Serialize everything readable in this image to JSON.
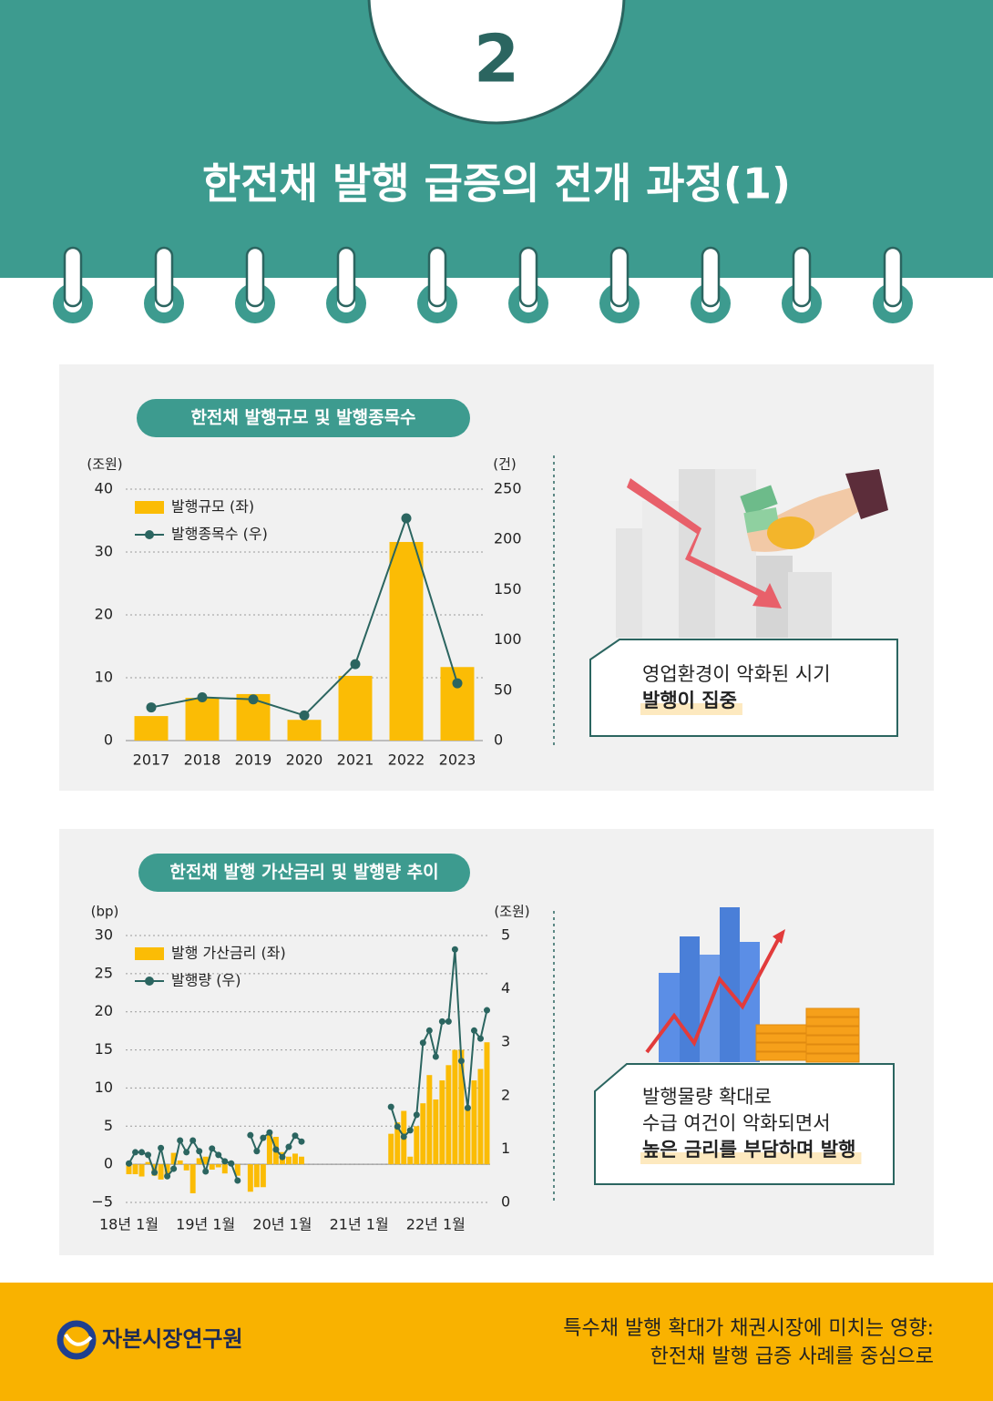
{
  "header": {
    "number": "2",
    "title": "한전채 발행 급증의 전개 과정(1)"
  },
  "chart_data": [
    {
      "type": "bar",
      "title": "한전채 발행규모 및 발행종목수",
      "y_label": "(조원)",
      "y2_label": "(건)",
      "categories": [
        "2017",
        "2018",
        "2019",
        "2020",
        "2021",
        "2022",
        "2023"
      ],
      "series": [
        {
          "name": "발행규모 (좌)",
          "color": "#fbbc05",
          "values": [
            3.9,
            6.8,
            7.4,
            3.3,
            10.3,
            31.6,
            11.7
          ]
        },
        {
          "name": "발행종목수 (우)",
          "type": "line",
          "axis": "y2",
          "color": "#2b6560",
          "values": [
            33,
            43,
            41,
            25,
            76,
            221,
            57
          ]
        }
      ],
      "ylim": [
        0,
        40
      ],
      "yticks": [
        0,
        10,
        20,
        30,
        40
      ],
      "y2lim": [
        0,
        250
      ],
      "y2ticks": [
        0,
        50,
        100,
        150,
        200,
        250
      ],
      "grid": true,
      "legend": "upper left"
    },
    {
      "type": "bar",
      "title": "한전채 발행 가산금리 및 발행량 추이",
      "y_label": "(bp)",
      "y2_label": "(조원)",
      "categories": [
        "18년 1월",
        null,
        null,
        null,
        null,
        null,
        null,
        null,
        null,
        null,
        null,
        null,
        "19년 1월",
        null,
        null,
        null,
        null,
        null,
        null,
        null,
        null,
        null,
        null,
        null,
        "20년 1월",
        null,
        null,
        null,
        null,
        null,
        null,
        null,
        null,
        null,
        null,
        null,
        "21년 1월",
        null,
        null,
        null,
        null,
        null,
        null,
        null,
        null,
        null,
        null,
        null,
        "22년 1월",
        null,
        null,
        null,
        null,
        null,
        null,
        null,
        null
      ],
      "series": [
        {
          "name": "발행 가산금리 (좌)",
          "color": "#fbbc05",
          "values": [
            -1.3,
            -1.3,
            -1.6,
            0.3,
            -1.5,
            -2.0,
            -1.6,
            1.5,
            0.5,
            -0.8,
            -3.8,
            0.8,
            1.0,
            -0.7,
            -0.4,
            -1.2,
            0.3,
            -1.5,
            null,
            -3.6,
            -3.0,
            -3.0,
            4.2,
            3.6,
            1.6,
            1.0,
            1.4,
            1.0,
            null,
            null,
            null,
            null,
            null,
            null,
            null,
            null,
            null,
            null,
            null,
            null,
            null,
            4.0,
            5.5,
            7.0,
            1.0,
            5.0,
            8.0,
            11.7,
            8.5,
            11.0,
            13.0,
            15.0,
            15.0,
            7.5,
            11.0,
            12.5,
            16.0
          ]
        },
        {
          "name": "발행량 (우)",
          "type": "line",
          "axis": "y2",
          "color": "#2b6560",
          "values": [
            0.73,
            0.94,
            0.94,
            0.89,
            0.56,
            1.02,
            0.49,
            0.63,
            1.16,
            0.94,
            1.16,
            0.96,
            0.58,
            1.01,
            0.89,
            0.77,
            0.73,
            0.41,
            null,
            1.26,
            0.96,
            1.21,
            1.31,
            0.99,
            0.85,
            1.04,
            1.25,
            1.14,
            null,
            null,
            null,
            null,
            null,
            null,
            null,
            null,
            null,
            null,
            null,
            null,
            null,
            1.79,
            1.42,
            1.23,
            1.35,
            1.64,
            2.99,
            3.22,
            2.73,
            3.39,
            3.39,
            4.74,
            2.65,
            1.77,
            3.22,
            3.07,
            3.6
          ]
        }
      ],
      "ylim": [
        -5,
        30
      ],
      "yticks": [
        {
          "value": -5,
          "label": "−5"
        },
        0,
        5,
        10,
        15,
        20,
        25,
        30
      ],
      "y2lim": [
        0,
        5
      ],
      "y2ticks": [
        0,
        1,
        2,
        3,
        4,
        5
      ],
      "grid": true,
      "legend": "upper left"
    }
  ],
  "callouts": [
    {
      "lines": [
        "영업환경이 악화된 시기"
      ],
      "highlight": "발행이 집중"
    },
    {
      "lines": [
        "발행물량 확대로",
        "수급 여건이 악화되면서"
      ],
      "highlight": "높은 금리를 부담하며 발행"
    }
  ],
  "footer": {
    "org": "자본시장연구원",
    "report": [
      "특수채 발행 확대가  채권시장에 미치는 영향:",
      "한전채 발행 급증 사례를 중심으로"
    ]
  }
}
